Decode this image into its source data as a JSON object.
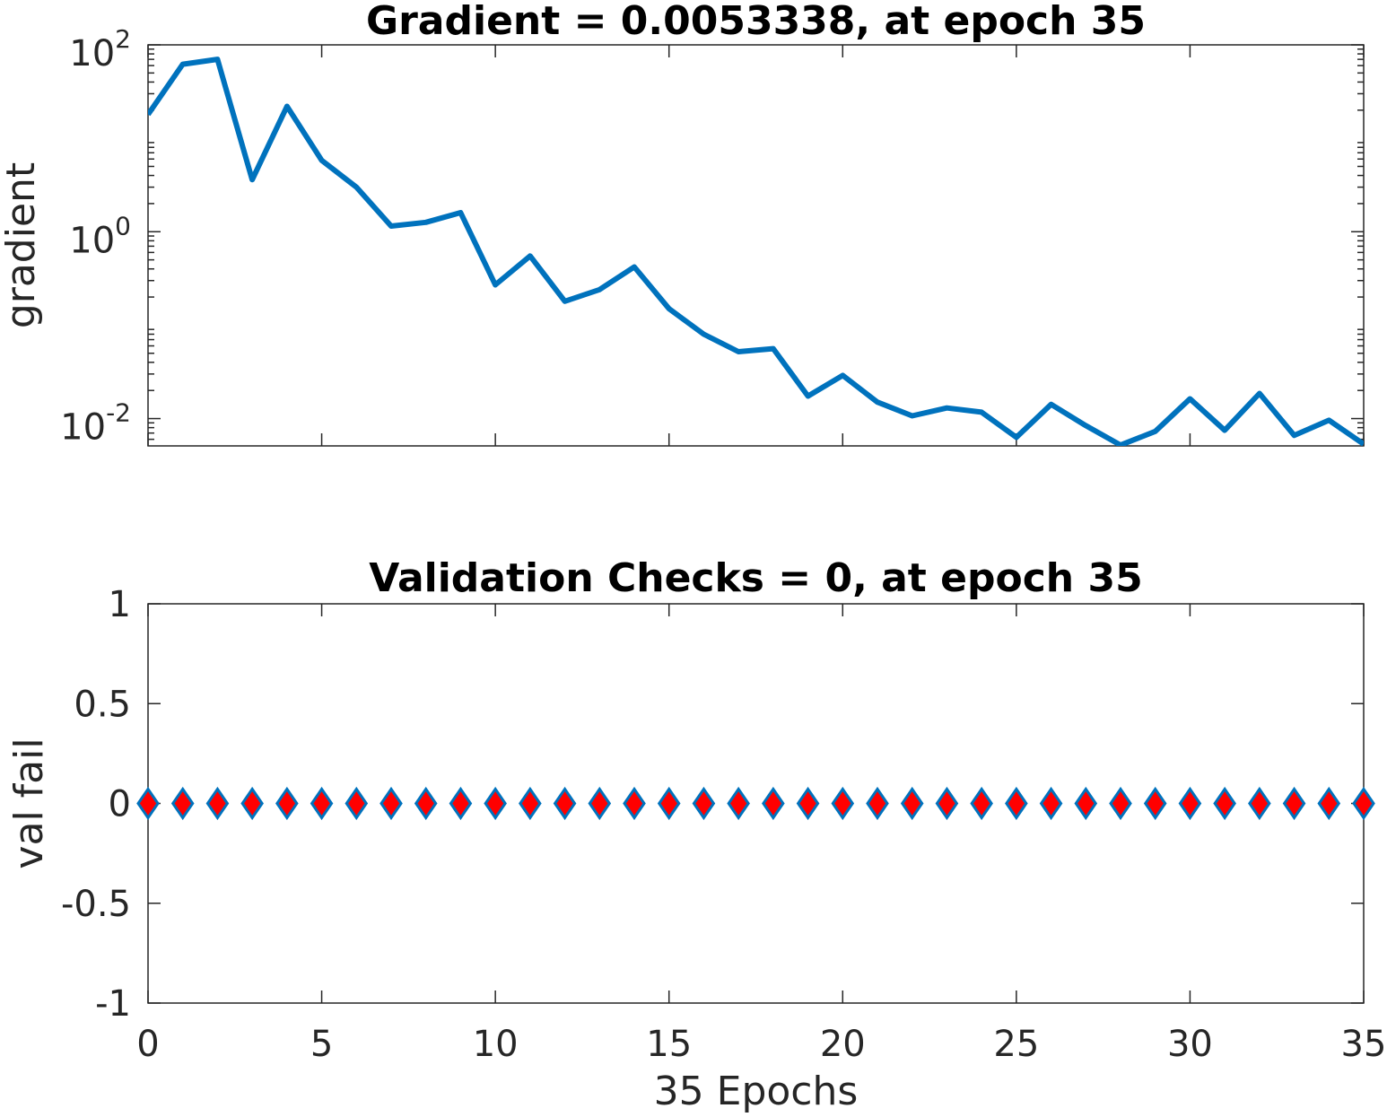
{
  "chart_data": [
    {
      "type": "line",
      "title": "Gradient = 0.0053338, at epoch 35",
      "ylabel": "gradient",
      "yscale": "log",
      "xlim": [
        0,
        35
      ],
      "ylim": [
        0.0051,
        100
      ],
      "xticks": [
        0,
        5,
        10,
        15,
        20,
        25,
        30,
        35
      ],
      "yticks": [
        0.01,
        1,
        100
      ],
      "ytick_labels": [
        {
          "base": "10",
          "exp": "-2"
        },
        {
          "base": "10",
          "exp": "0"
        },
        {
          "base": "10",
          "exp": "2"
        }
      ],
      "grid": false,
      "series": [
        {
          "color": "#0072BD",
          "x": [
            0,
            1,
            2,
            3,
            4,
            5,
            6,
            7,
            8,
            9,
            10,
            11,
            12,
            13,
            14,
            15,
            16,
            17,
            18,
            19,
            20,
            21,
            22,
            23,
            24,
            25,
            26,
            27,
            28,
            29,
            30,
            31,
            32,
            33,
            34,
            35
          ],
          "y": [
            18,
            62,
            70,
            3.6,
            22,
            5.8,
            3.0,
            1.15,
            1.26,
            1.6,
            0.27,
            0.55,
            0.18,
            0.24,
            0.42,
            0.15,
            0.08,
            0.052,
            0.056,
            0.0174,
            0.029,
            0.015,
            0.0107,
            0.013,
            0.0117,
            0.0063,
            0.0142,
            0.0084,
            0.0052,
            0.0073,
            0.0163,
            0.0075,
            0.0186,
            0.0066,
            0.0096,
            0.0053338
          ]
        }
      ]
    },
    {
      "type": "scatter",
      "title": "Validation Checks = 0, at epoch 35",
      "xlabel": "35 Epochs",
      "ylabel": "val fail",
      "xlim": [
        0,
        35
      ],
      "ylim": [
        -1,
        1
      ],
      "xticks": [
        0,
        5,
        10,
        15,
        20,
        25,
        30,
        35
      ],
      "xtick_labels": [
        "0",
        "5",
        "10",
        "15",
        "20",
        "25",
        "30",
        "35"
      ],
      "yticks": [
        -1,
        -0.5,
        0,
        0.5,
        1
      ],
      "ytick_labels": [
        "-1",
        "-0.5",
        "0",
        "0.5",
        "1"
      ],
      "grid": false,
      "series": [
        {
          "marker": "diamond",
          "marker_face_color": "#FF0000",
          "marker_edge_color": "#0072BD",
          "x": [
            0,
            1,
            2,
            3,
            4,
            5,
            6,
            7,
            8,
            9,
            10,
            11,
            12,
            13,
            14,
            15,
            16,
            17,
            18,
            19,
            20,
            21,
            22,
            23,
            24,
            25,
            26,
            27,
            28,
            29,
            30,
            31,
            32,
            33,
            34,
            35
          ],
          "y": [
            0,
            0,
            0,
            0,
            0,
            0,
            0,
            0,
            0,
            0,
            0,
            0,
            0,
            0,
            0,
            0,
            0,
            0,
            0,
            0,
            0,
            0,
            0,
            0,
            0,
            0,
            0,
            0,
            0,
            0,
            0,
            0,
            0,
            0,
            0,
            0
          ]
        }
      ]
    }
  ]
}
